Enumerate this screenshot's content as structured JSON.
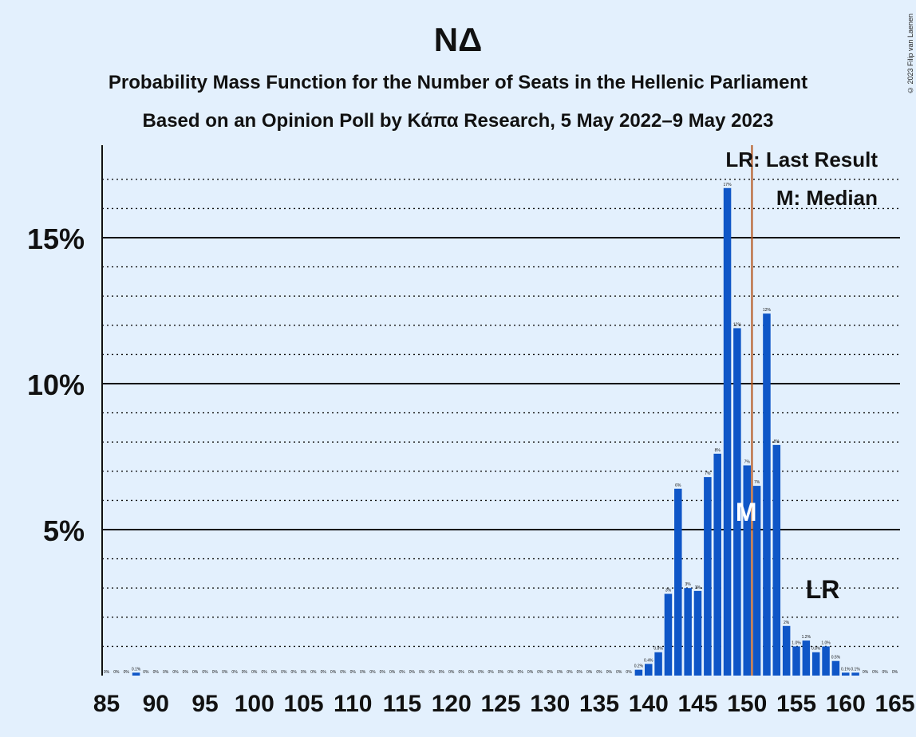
{
  "title": "ΝΔ",
  "subtitle_1": "Probability Mass Function for the Number of Seats in the Hellenic Parliament",
  "subtitle_2": "Based on an Opinion Poll by Κάπα Research, 5 May 2022–9 May 2023",
  "copyright": "© 2023 Filip van Laenen",
  "legend": {
    "last_result": "LR: Last Result",
    "median": "M: Median"
  },
  "markers": {
    "median_label": "M",
    "median_seat": 150,
    "last_result_label": "LR",
    "last_result_seat": 158,
    "last_result_line_seat": 151
  },
  "colors": {
    "bar": "#0f56c7",
    "last_result_line": "#b5561d",
    "background": "#e3f0fd"
  },
  "chart_data": {
    "type": "bar",
    "x_start": 85,
    "values": [
      0,
      0,
      0,
      0.1,
      0,
      0,
      0,
      0,
      0,
      0,
      0,
      0,
      0,
      0,
      0,
      0,
      0,
      0,
      0,
      0,
      0,
      0,
      0,
      0,
      0,
      0,
      0,
      0,
      0,
      0,
      0,
      0,
      0,
      0,
      0,
      0,
      0,
      0,
      0,
      0,
      0,
      0,
      0,
      0,
      0,
      0,
      0,
      0,
      0,
      0,
      0,
      0,
      0,
      0,
      0.2,
      0.4,
      0.8,
      2.8,
      6.4,
      3.0,
      2.9,
      6.8,
      7.6,
      16.7,
      11.9,
      7.2,
      6.5,
      12.4,
      7.9,
      1.7,
      1.0,
      1.2,
      0.8,
      1.0,
      0.5,
      0.1,
      0.1,
      0,
      0,
      0,
      0
    ],
    "bar_labels": [
      "0%",
      "0%",
      "0%",
      "0.1%",
      "0%",
      "0%",
      "0%",
      "0%",
      "0%",
      "0%",
      "0%",
      "0%",
      "0%",
      "0%",
      "0%",
      "0%",
      "0%",
      "0%",
      "0%",
      "0%",
      "0%",
      "0%",
      "0%",
      "0%",
      "0%",
      "0%",
      "0%",
      "0%",
      "0%",
      "0%",
      "0%",
      "0%",
      "0%",
      "0%",
      "0%",
      "0%",
      "0%",
      "0%",
      "0%",
      "0%",
      "0%",
      "0%",
      "0%",
      "0%",
      "0%",
      "0%",
      "0%",
      "0%",
      "0%",
      "0%",
      "0%",
      "0%",
      "0%",
      "0%",
      "0.2%",
      "0.4%",
      "0.8%",
      "3%",
      "6%",
      "3%",
      "3%",
      "7%",
      "8%",
      "17%",
      "12%",
      "7%",
      "7%",
      "12%",
      "8%",
      "2%",
      "1.0%",
      "1.2%",
      "0.8%",
      "1.0%",
      "0.5%",
      "0.1%",
      "0.1%",
      "0%",
      "0%",
      "0%",
      "0%"
    ],
    "x_ticks": [
      "85",
      "90",
      "95",
      "100",
      "105",
      "110",
      "115",
      "120",
      "125",
      "130",
      "135",
      "140",
      "145",
      "150",
      "155",
      "160",
      "165"
    ],
    "y_ticks": [
      "5%",
      "10%",
      "15%"
    ],
    "ylim": [
      0,
      18
    ],
    "grid": "dotted minor every 1%, solid major every 5%"
  }
}
